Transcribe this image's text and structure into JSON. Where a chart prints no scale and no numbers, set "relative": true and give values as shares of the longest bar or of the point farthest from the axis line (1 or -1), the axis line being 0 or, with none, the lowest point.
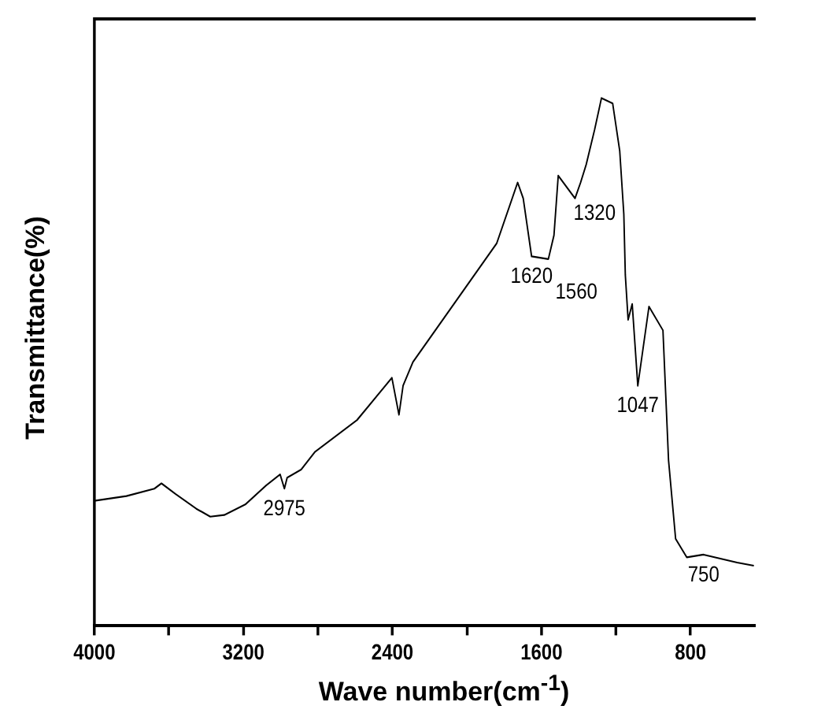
{
  "chart_data": {
    "type": "line",
    "relative": true,
    "xlabel": "Wave number(cm$^{-1}$)",
    "ylabel": "Transmittance(%)",
    "xlim": [
      4000,
      450
    ],
    "xticks": [
      4000,
      {
        "value": 3600,
        "label": null
      },
      3200,
      {
        "value": 2800,
        "label": null
      },
      2400,
      {
        "value": 2000,
        "label": null
      },
      1600,
      {
        "value": 1200,
        "label": null
      },
      800
    ],
    "grid": false,
    "legend": false,
    "marker": "none",
    "line_style": "solid",
    "series": [
      {
        "color": "#000000",
        "x": [
          4000,
          3828,
          3678,
          3640,
          3565,
          3453,
          3378,
          3303,
          3190,
          3078,
          3003,
          2980,
          2965,
          2890,
          2815,
          2590,
          2403,
          2365,
          2343,
          2290,
          2140,
          1990,
          1840,
          1728,
          1698,
          1653,
          1563,
          1533,
          1510,
          1420,
          1390,
          1360,
          1315,
          1278,
          1218,
          1180,
          1158,
          1150,
          1135,
          1113,
          1083,
          1023,
          948,
          918,
          880,
          820,
          730,
          550,
          460
        ],
        "values": [
          0.237,
          0.246,
          0.26,
          0.27,
          0.25,
          0.222,
          0.207,
          0.21,
          0.23,
          0.266,
          0.287,
          0.26,
          0.281,
          0.296,
          0.33,
          0.39,
          0.47,
          0.4,
          0.455,
          0.5,
          0.575,
          0.65,
          0.725,
          0.84,
          0.81,
          0.7,
          0.695,
          0.74,
          0.853,
          0.81,
          0.84,
          0.874,
          0.94,
          1.0,
          0.99,
          0.9,
          0.78,
          0.665,
          0.58,
          0.61,
          0.455,
          0.605,
          0.56,
          0.314,
          0.165,
          0.13,
          0.135,
          0.12,
          0.114
        ]
      }
    ],
    "annotations": [
      {
        "text": "2975",
        "x": 2980,
        "y": 0.26
      },
      {
        "text": "1620",
        "x": 1653,
        "y": 0.7
      },
      {
        "text": "1560",
        "x": 1563,
        "y": 0.695
      },
      {
        "text": "1320",
        "x": 1315,
        "y": 0.874
      },
      {
        "text": "1047",
        "x": 1083,
        "y": 0.455
      },
      {
        "text": "750",
        "x": 730,
        "y": 0.135
      }
    ]
  }
}
